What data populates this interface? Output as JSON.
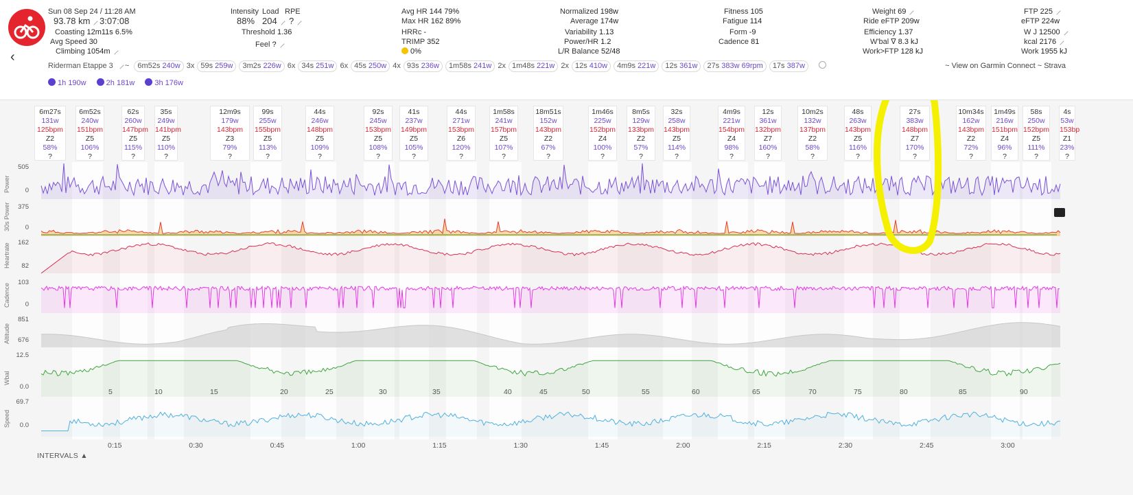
{
  "header": {
    "date": "Sun 08 Sep 24",
    "time": "11:28 AM",
    "distance": "93.78 km",
    "duration": "3:07:08",
    "coasting_label": "Coasting",
    "coasting": "12m11s",
    "coasting_pct": "6.5%",
    "avg_speed_label": "Avg Speed",
    "avg_speed": "30",
    "climbing_label": "Climbing",
    "climbing": "1054m",
    "intensity_label": "Intensity",
    "intensity": "88%",
    "load_label": "Load",
    "load": "204",
    "rpe_label": "RPE",
    "rpe": "?",
    "threshold_label": "Threshold",
    "threshold": "1.36",
    "feel_label": "Feel",
    "feel": "?",
    "avg_hr_label": "Avg HR",
    "avg_hr": "144",
    "avg_hr_pct": "79%",
    "max_hr_label": "Max HR",
    "max_hr": "162",
    "max_hr_pct": "89%",
    "hrrc_label": "HRRc",
    "hrrc": "-",
    "trimp_label": "TRIMP",
    "trimp": "352",
    "decoupling": "0%",
    "normalized_label": "Normalized",
    "normalized": "198w",
    "average_label": "Average",
    "average": "174w",
    "variability_label": "Variability",
    "variability": "1.13",
    "power_hr_label": "Power/HR",
    "power_hr": "1.2",
    "lr_balance_label": "L/R Balance",
    "lr_balance": "52/48",
    "fitness_label": "Fitness",
    "fitness": "105",
    "fatigue_label": "Fatigue",
    "fatigue": "114",
    "form_label": "Form",
    "form": "-9",
    "cadence_label": "Cadence",
    "cadence": "81",
    "weight_label": "Weight",
    "weight": "69",
    "ride_eftp_label": "Ride eFTP",
    "ride_eftp": "209w",
    "efficiency_label": "Efficiency",
    "efficiency": "1.37",
    "wbal_label": "W'bal ∇",
    "wbal": "8.3 kJ",
    "work_ftp_label": "Work>FTP",
    "work_ftp": "128 kJ",
    "ftp_label": "FTP",
    "ftp": "225",
    "eftp_label": "eFTP",
    "eftp": "224w",
    "wj_label": "W J",
    "wj": "12500",
    "kcal_label": "kcal",
    "kcal": "2176",
    "work_label": "Work",
    "work": "1955 kJ"
  },
  "toolbar": {
    "workout_name": "Riderman Etappe 3",
    "separator": "~",
    "chips": [
      {
        "prefix": "",
        "dur": "6m52s",
        "watts": "240w",
        "boxed": true
      },
      {
        "prefix": "3x",
        "dur": "59s",
        "watts": "259w",
        "boxed": true
      },
      {
        "prefix": "",
        "dur": "3m2s",
        "watts": "226w",
        "boxed": true
      },
      {
        "prefix": "6x",
        "dur": "34s",
        "watts": "251w",
        "boxed": true
      },
      {
        "prefix": "6x",
        "dur": "45s",
        "watts": "250w",
        "boxed": true
      },
      {
        "prefix": "4x",
        "dur": "93s",
        "watts": "236w",
        "boxed": true
      },
      {
        "prefix": "",
        "dur": "1m58s",
        "watts": "241w",
        "boxed": true
      },
      {
        "prefix": "2x",
        "dur": "1m48s",
        "watts": "221w",
        "boxed": true
      },
      {
        "prefix": "2x",
        "dur": "12s",
        "watts": "410w",
        "boxed": true
      },
      {
        "prefix": "",
        "dur": "4m9s",
        "watts": "221w",
        "boxed": true
      },
      {
        "prefix": "",
        "dur": "12s",
        "watts": "361w",
        "boxed": true
      },
      {
        "prefix": "",
        "dur": "27s",
        "watts": "383w 69rpm",
        "boxed": true
      },
      {
        "prefix": "",
        "dur": "17s",
        "watts": "387w",
        "boxed": true
      }
    ],
    "view_links": "~ View on Garmin Connect ~ Strava"
  },
  "bests": [
    {
      "dur": "1h",
      "watts": "190w"
    },
    {
      "dur": "2h",
      "watts": "181w"
    },
    {
      "dur": "3h",
      "watts": "176w"
    }
  ],
  "interval_cards": [
    {
      "dur": "6m27s",
      "watts": "131w",
      "hr": "125bpm",
      "zone": "Z2",
      "pct": "58%",
      "q": "?"
    },
    {
      "dur": "6m52s",
      "watts": "240w",
      "hr": "151bpm",
      "zone": "Z5",
      "pct": "106%",
      "q": "?"
    },
    {
      "dur": "62s",
      "watts": "260w",
      "hr": "147bpm",
      "zone": "Z5",
      "pct": "115%",
      "q": "?"
    },
    {
      "dur": "35s",
      "watts": "249w",
      "hr": "141bpm",
      "zone": "Z5",
      "pct": "110%",
      "q": "?"
    },
    {
      "dur": "12m9s",
      "watts": "179w",
      "hr": "143bpm",
      "zone": "Z3",
      "pct": "79%",
      "q": "?"
    },
    {
      "dur": "99s",
      "watts": "255w",
      "hr": "155bpm",
      "zone": "Z5",
      "pct": "113%",
      "q": "?"
    },
    {
      "dur": "44s",
      "watts": "246w",
      "hr": "148bpm",
      "zone": "Z5",
      "pct": "109%",
      "q": "?"
    },
    {
      "dur": "92s",
      "watts": "245w",
      "hr": "153bpm",
      "zone": "Z5",
      "pct": "108%",
      "q": "?"
    },
    {
      "dur": "41s",
      "watts": "237w",
      "hr": "149bpm",
      "zone": "Z5",
      "pct": "105%",
      "q": "?"
    },
    {
      "dur": "44s",
      "watts": "271w",
      "hr": "153bpm",
      "zone": "Z6",
      "pct": "120%",
      "q": "?"
    },
    {
      "dur": "1m58s",
      "watts": "241w",
      "hr": "157bpm",
      "zone": "Z5",
      "pct": "107%",
      "q": "?"
    },
    {
      "dur": "18m51s",
      "watts": "152w",
      "hr": "143bpm",
      "zone": "Z2",
      "pct": "67%",
      "q": "?"
    },
    {
      "dur": "1m46s",
      "watts": "225w",
      "hr": "152bpm",
      "zone": "Z4",
      "pct": "100%",
      "q": "?"
    },
    {
      "dur": "8m5s",
      "watts": "129w",
      "hr": "133bpm",
      "zone": "Z2",
      "pct": "57%",
      "q": "?"
    },
    {
      "dur": "32s",
      "watts": "258w",
      "hr": "143bpm",
      "zone": "Z5",
      "pct": "114%",
      "q": "?"
    },
    {
      "dur": "4m9s",
      "watts": "221w",
      "hr": "154bpm",
      "zone": "Z4",
      "pct": "98%",
      "q": "?"
    },
    {
      "dur": "12s",
      "watts": "361w",
      "hr": "132bpm",
      "zone": "Z7",
      "pct": "160%",
      "q": "?"
    },
    {
      "dur": "10m2s",
      "watts": "132w",
      "hr": "137bpm",
      "zone": "Z2",
      "pct": "58%",
      "q": "?"
    },
    {
      "dur": "48s",
      "watts": "263w",
      "hr": "143bpm",
      "zone": "Z5",
      "pct": "116%",
      "q": "?"
    },
    {
      "dur": "27s",
      "watts": "383w",
      "hr": "148bpm",
      "zone": "Z7",
      "pct": "170%",
      "q": "?"
    },
    {
      "dur": "10m34s",
      "watts": "162w",
      "hr": "143bpm",
      "zone": "Z2",
      "pct": "72%",
      "q": "?"
    },
    {
      "dur": "1m49s",
      "watts": "216w",
      "hr": "151bpm",
      "zone": "Z4",
      "pct": "96%",
      "q": "?"
    },
    {
      "dur": "58s",
      "watts": "250w",
      "hr": "152bpm",
      "zone": "Z5",
      "pct": "111%",
      "q": "?"
    },
    {
      "dur": "4s",
      "watts": "53w",
      "hr": "153bp",
      "zone": "Z1",
      "pct": "23%",
      "q": "?"
    }
  ],
  "rows": [
    {
      "name": "Power",
      "max": "505",
      "min": "0"
    },
    {
      "name": "30s Power",
      "max": "375",
      "min": "0"
    },
    {
      "name": "Heartrate",
      "max": "162",
      "min": "82"
    },
    {
      "name": "Cadence",
      "max": "103",
      "min": "0"
    },
    {
      "name": "Altitude",
      "max": "851",
      "min": "676"
    },
    {
      "name": "Wbal",
      "max": "12.5",
      "min": "0.0"
    },
    {
      "name": "Speed",
      "max": "69.7",
      "min": "0.0"
    }
  ],
  "km_ticks": [
    "5",
    "10",
    "15",
    "20",
    "25",
    "30",
    "35",
    "40",
    "45",
    "50",
    "55",
    "60",
    "65",
    "70",
    "75",
    "80",
    "85",
    "90"
  ],
  "time_ticks": [
    "0:15",
    "0:30",
    "0:45",
    "1:00",
    "1:15",
    "1:30",
    "1:45",
    "2:00",
    "2:15",
    "2:30",
    "2:45",
    "3:00"
  ],
  "intervals_toggle": "INTERVALS ▲",
  "colors": {
    "accent": "#e4252d",
    "power": "#7b52d6",
    "heartrate": "#d62f52",
    "cadence": "#e835e8",
    "altitude": "#b5b5b5",
    "wbal": "#3fa43f",
    "speed": "#4fb0de",
    "highlight": "#f4f000"
  }
}
